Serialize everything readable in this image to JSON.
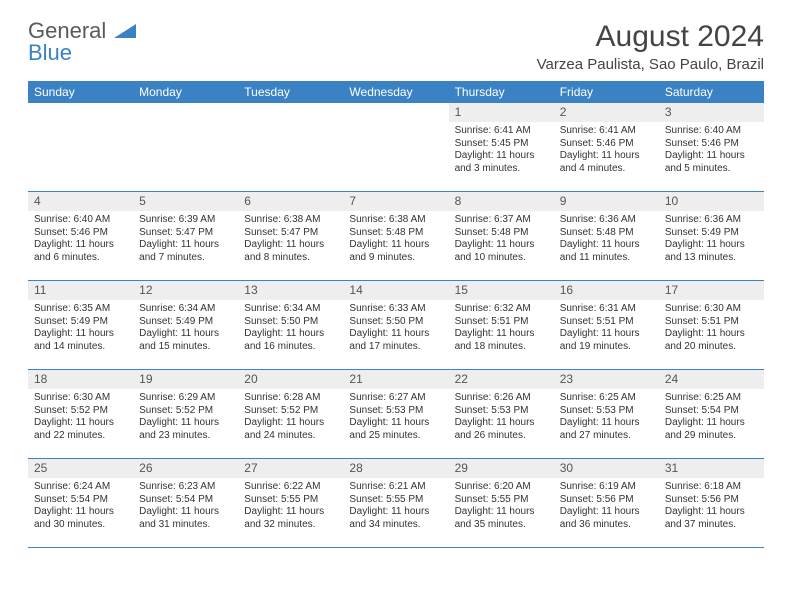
{
  "logo": {
    "word1": "General",
    "word2": "Blue"
  },
  "title": "August 2024",
  "location": "Varzea Paulista, Sao Paulo, Brazil",
  "colors": {
    "header_bg": "#3b82c4",
    "header_text": "#ffffff",
    "daynum_bg": "#eeeeee",
    "text": "#333333",
    "title_text": "#444444",
    "row_border": "#3b82c4"
  },
  "day_names": [
    "Sunday",
    "Monday",
    "Tuesday",
    "Wednesday",
    "Thursday",
    "Friday",
    "Saturday"
  ],
  "weeks": [
    [
      {
        "num": "",
        "sunrise": "",
        "sunset": "",
        "daylight": ""
      },
      {
        "num": "",
        "sunrise": "",
        "sunset": "",
        "daylight": ""
      },
      {
        "num": "",
        "sunrise": "",
        "sunset": "",
        "daylight": ""
      },
      {
        "num": "",
        "sunrise": "",
        "sunset": "",
        "daylight": ""
      },
      {
        "num": "1",
        "sunrise": "Sunrise: 6:41 AM",
        "sunset": "Sunset: 5:45 PM",
        "daylight": "Daylight: 11 hours and 3 minutes."
      },
      {
        "num": "2",
        "sunrise": "Sunrise: 6:41 AM",
        "sunset": "Sunset: 5:46 PM",
        "daylight": "Daylight: 11 hours and 4 minutes."
      },
      {
        "num": "3",
        "sunrise": "Sunrise: 6:40 AM",
        "sunset": "Sunset: 5:46 PM",
        "daylight": "Daylight: 11 hours and 5 minutes."
      }
    ],
    [
      {
        "num": "4",
        "sunrise": "Sunrise: 6:40 AM",
        "sunset": "Sunset: 5:46 PM",
        "daylight": "Daylight: 11 hours and 6 minutes."
      },
      {
        "num": "5",
        "sunrise": "Sunrise: 6:39 AM",
        "sunset": "Sunset: 5:47 PM",
        "daylight": "Daylight: 11 hours and 7 minutes."
      },
      {
        "num": "6",
        "sunrise": "Sunrise: 6:38 AM",
        "sunset": "Sunset: 5:47 PM",
        "daylight": "Daylight: 11 hours and 8 minutes."
      },
      {
        "num": "7",
        "sunrise": "Sunrise: 6:38 AM",
        "sunset": "Sunset: 5:48 PM",
        "daylight": "Daylight: 11 hours and 9 minutes."
      },
      {
        "num": "8",
        "sunrise": "Sunrise: 6:37 AM",
        "sunset": "Sunset: 5:48 PM",
        "daylight": "Daylight: 11 hours and 10 minutes."
      },
      {
        "num": "9",
        "sunrise": "Sunrise: 6:36 AM",
        "sunset": "Sunset: 5:48 PM",
        "daylight": "Daylight: 11 hours and 11 minutes."
      },
      {
        "num": "10",
        "sunrise": "Sunrise: 6:36 AM",
        "sunset": "Sunset: 5:49 PM",
        "daylight": "Daylight: 11 hours and 13 minutes."
      }
    ],
    [
      {
        "num": "11",
        "sunrise": "Sunrise: 6:35 AM",
        "sunset": "Sunset: 5:49 PM",
        "daylight": "Daylight: 11 hours and 14 minutes."
      },
      {
        "num": "12",
        "sunrise": "Sunrise: 6:34 AM",
        "sunset": "Sunset: 5:49 PM",
        "daylight": "Daylight: 11 hours and 15 minutes."
      },
      {
        "num": "13",
        "sunrise": "Sunrise: 6:34 AM",
        "sunset": "Sunset: 5:50 PM",
        "daylight": "Daylight: 11 hours and 16 minutes."
      },
      {
        "num": "14",
        "sunrise": "Sunrise: 6:33 AM",
        "sunset": "Sunset: 5:50 PM",
        "daylight": "Daylight: 11 hours and 17 minutes."
      },
      {
        "num": "15",
        "sunrise": "Sunrise: 6:32 AM",
        "sunset": "Sunset: 5:51 PM",
        "daylight": "Daylight: 11 hours and 18 minutes."
      },
      {
        "num": "16",
        "sunrise": "Sunrise: 6:31 AM",
        "sunset": "Sunset: 5:51 PM",
        "daylight": "Daylight: 11 hours and 19 minutes."
      },
      {
        "num": "17",
        "sunrise": "Sunrise: 6:30 AM",
        "sunset": "Sunset: 5:51 PM",
        "daylight": "Daylight: 11 hours and 20 minutes."
      }
    ],
    [
      {
        "num": "18",
        "sunrise": "Sunrise: 6:30 AM",
        "sunset": "Sunset: 5:52 PM",
        "daylight": "Daylight: 11 hours and 22 minutes."
      },
      {
        "num": "19",
        "sunrise": "Sunrise: 6:29 AM",
        "sunset": "Sunset: 5:52 PM",
        "daylight": "Daylight: 11 hours and 23 minutes."
      },
      {
        "num": "20",
        "sunrise": "Sunrise: 6:28 AM",
        "sunset": "Sunset: 5:52 PM",
        "daylight": "Daylight: 11 hours and 24 minutes."
      },
      {
        "num": "21",
        "sunrise": "Sunrise: 6:27 AM",
        "sunset": "Sunset: 5:53 PM",
        "daylight": "Daylight: 11 hours and 25 minutes."
      },
      {
        "num": "22",
        "sunrise": "Sunrise: 6:26 AM",
        "sunset": "Sunset: 5:53 PM",
        "daylight": "Daylight: 11 hours and 26 minutes."
      },
      {
        "num": "23",
        "sunrise": "Sunrise: 6:25 AM",
        "sunset": "Sunset: 5:53 PM",
        "daylight": "Daylight: 11 hours and 27 minutes."
      },
      {
        "num": "24",
        "sunrise": "Sunrise: 6:25 AM",
        "sunset": "Sunset: 5:54 PM",
        "daylight": "Daylight: 11 hours and 29 minutes."
      }
    ],
    [
      {
        "num": "25",
        "sunrise": "Sunrise: 6:24 AM",
        "sunset": "Sunset: 5:54 PM",
        "daylight": "Daylight: 11 hours and 30 minutes."
      },
      {
        "num": "26",
        "sunrise": "Sunrise: 6:23 AM",
        "sunset": "Sunset: 5:54 PM",
        "daylight": "Daylight: 11 hours and 31 minutes."
      },
      {
        "num": "27",
        "sunrise": "Sunrise: 6:22 AM",
        "sunset": "Sunset: 5:55 PM",
        "daylight": "Daylight: 11 hours and 32 minutes."
      },
      {
        "num": "28",
        "sunrise": "Sunrise: 6:21 AM",
        "sunset": "Sunset: 5:55 PM",
        "daylight": "Daylight: 11 hours and 34 minutes."
      },
      {
        "num": "29",
        "sunrise": "Sunrise: 6:20 AM",
        "sunset": "Sunset: 5:55 PM",
        "daylight": "Daylight: 11 hours and 35 minutes."
      },
      {
        "num": "30",
        "sunrise": "Sunrise: 6:19 AM",
        "sunset": "Sunset: 5:56 PM",
        "daylight": "Daylight: 11 hours and 36 minutes."
      },
      {
        "num": "31",
        "sunrise": "Sunrise: 6:18 AM",
        "sunset": "Sunset: 5:56 PM",
        "daylight": "Daylight: 11 hours and 37 minutes."
      }
    ]
  ]
}
